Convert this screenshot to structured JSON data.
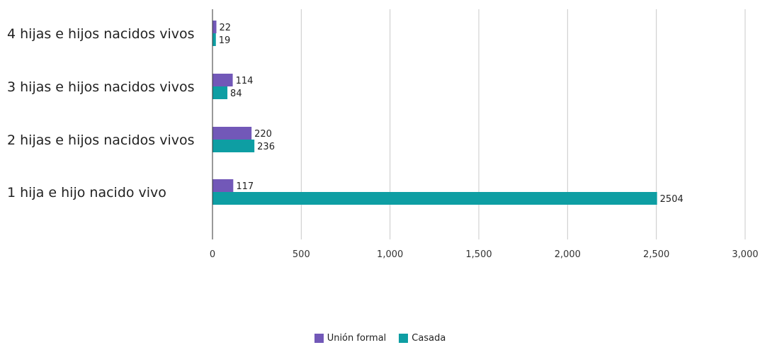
{
  "chart_data": {
    "type": "bar",
    "orientation": "horizontal",
    "categories": [
      "4 hijas e hijos nacidos vivos",
      "3 hijas e hijos nacidos vivos",
      "2 hijas e hijos nacidos vivos",
      "1 hija e hijo nacido vivo"
    ],
    "series": [
      {
        "name": "Unión formal",
        "color": "#7258b8",
        "values": [
          22,
          114,
          220,
          117
        ]
      },
      {
        "name": "Casada",
        "color": "#0e9ea3",
        "values": [
          19,
          84,
          236,
          2504
        ]
      }
    ],
    "xlim": [
      0,
      3000
    ],
    "xticks": [
      "0",
      "500",
      "1,000",
      "1,500",
      "2,000",
      "2,500",
      "3,000"
    ],
    "xtick_values": [
      0,
      500,
      1000,
      1500,
      2000,
      2500,
      3000
    ],
    "grid": true,
    "legend_position": "bottom"
  }
}
